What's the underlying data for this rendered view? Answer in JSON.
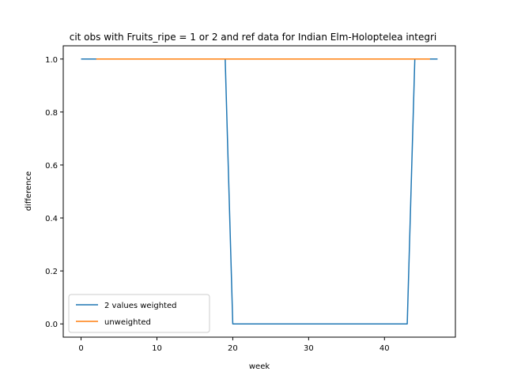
{
  "chart_data": {
    "type": "line",
    "title": "cit obs with Fruits_ripe = 1 or 2 and ref data for Indian Elm-Holoptelea integri",
    "xlabel": "week",
    "ylabel": "difference",
    "xlim": [
      -2.35,
      49.35
    ],
    "ylim": [
      -0.05,
      1.05
    ],
    "xticks": [
      0,
      10,
      20,
      30,
      40
    ],
    "yticks": [
      0.0,
      0.2,
      0.4,
      0.6,
      0.8,
      1.0
    ],
    "xtick_labels": [
      "0",
      "10",
      "20",
      "30",
      "40"
    ],
    "ytick_labels": [
      "0.0",
      "0.2",
      "0.4",
      "0.6",
      "0.8",
      "1.0"
    ],
    "legend_position": "lower-left",
    "series": [
      {
        "name": "2 values weighted",
        "color": "#1f77b4",
        "x": [
          0,
          19,
          20,
          43,
          44,
          47
        ],
        "y": [
          1,
          1,
          0,
          0,
          1,
          1
        ]
      },
      {
        "name": "unweighted",
        "color": "#ff7f0e",
        "x": [
          2,
          46
        ],
        "y": [
          1,
          1
        ]
      }
    ]
  }
}
